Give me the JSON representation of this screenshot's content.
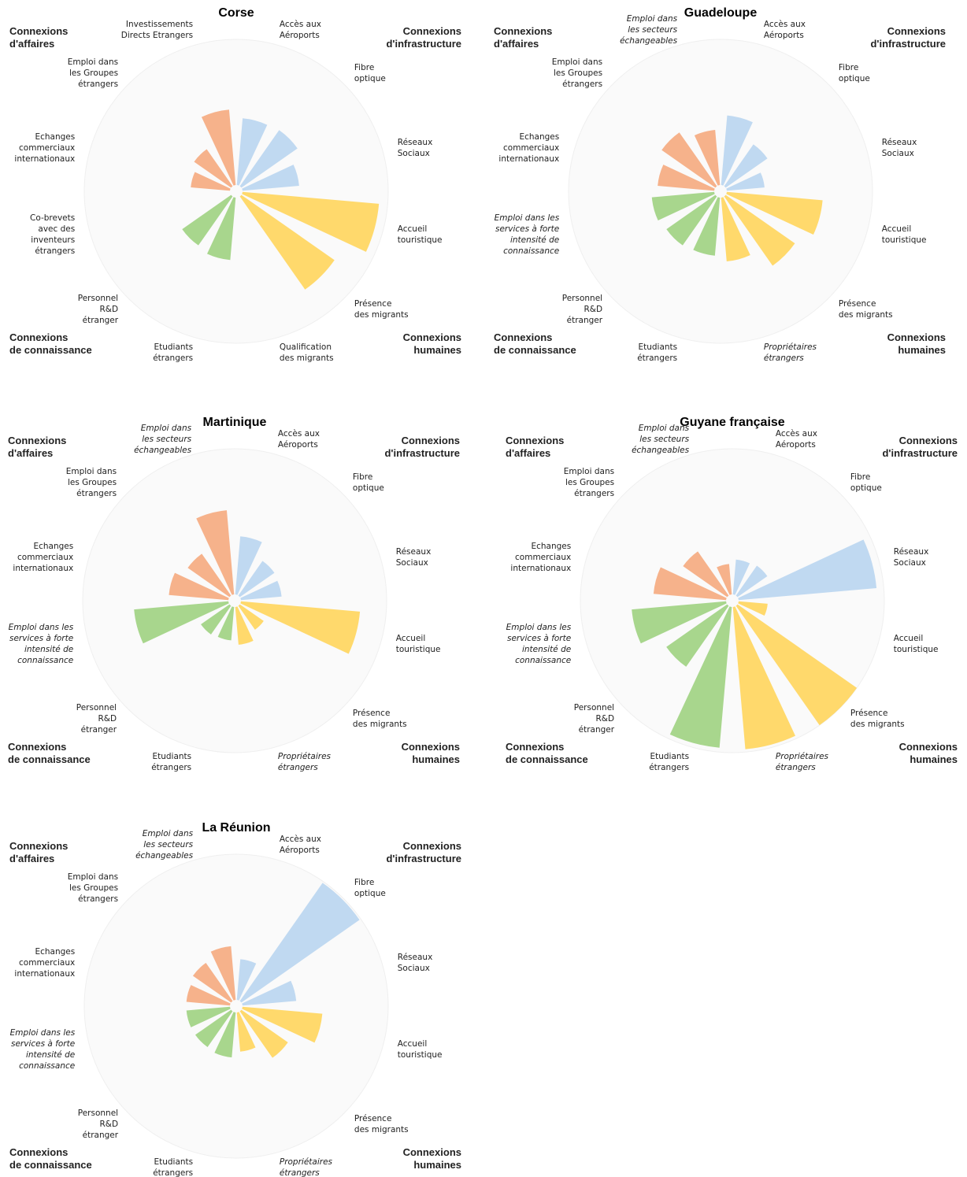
{
  "chart_data": [
    {
      "type": "polar_bar",
      "title": "Corse",
      "categories": [
        "Accès aux\nAéroports",
        "Fibre\noptique",
        "Réseaux\nSociaux",
        "Accueil\ntouristique",
        "Présence\ndes migrants",
        "Qualification\ndes migrants",
        "Etudiants\nétrangers",
        "Personnel\nR&D\nétranger",
        "Co-brevets\navec des\ninventeurs\nétrangers",
        "Echanges\ncommerciaux\ninternationaux",
        "Emploi dans\nles Groupes\nétrangers",
        "Investissements\nDirects Etrangers"
      ],
      "label_style": [
        "normal",
        "normal",
        "normal",
        "normal",
        "normal",
        "normal",
        "normal",
        "normal",
        "normal",
        "normal",
        "normal",
        "normal"
      ],
      "values": [
        46,
        47,
        39,
        94,
        78,
        null,
        43,
        41,
        null,
        27,
        31,
        52
      ],
      "colors": [
        "#b9d5ef",
        "#b9d5ef",
        "#b9d5ef",
        "#ffd55c",
        "#ffd55c",
        "#ffd55c",
        "#9fd181",
        "#9fd181",
        "#9fd181",
        "#f5aa7e",
        "#f5aa7e",
        "#f5aa7e"
      ],
      "rlim": [
        0,
        100
      ],
      "groups": [
        {
          "name": "Connexions\nd'affaires",
          "color": "#f5a97c",
          "corner": "top-left"
        },
        {
          "name": "Connexions\nd'infrastructure",
          "color": "#a8c9ec",
          "corner": "top-right"
        },
        {
          "name": "Connexions\nde connaissance",
          "color": "#9ccd7f",
          "corner": "bottom-left"
        },
        {
          "name": "Connexions\nhumaines",
          "color": "#f5c41c",
          "corner": "bottom-right"
        }
      ]
    },
    {
      "type": "polar_bar",
      "title": "Guadeloupe",
      "categories": [
        "Accès aux\nAéroports",
        "Fibre\noptique",
        "Réseaux\nSociaux",
        "Accueil\ntouristique",
        "Présence\ndes migrants",
        "Propriétaires\nétrangers",
        "Etudiants\nétrangers",
        "Personnel\nR&D\nétranger",
        "Emploi dans les\nservices à forte\nintensité de\nconnaissance",
        "Echanges\ncommerciaux\ninternationaux",
        "Emploi dans\nles Groupes\nétrangers",
        "Emploi dans\nles secteurs\néchangeables"
      ],
      "label_style": [
        "normal",
        "normal",
        "normal",
        "normal",
        "normal",
        "italic",
        "normal",
        "normal",
        "italic",
        "normal",
        "normal",
        "italic"
      ],
      "values": [
        48,
        35,
        26,
        66,
        58,
        44,
        40,
        41,
        43,
        39,
        45,
        38
      ],
      "colors": [
        "#b9d5ef",
        "#b9d5ef",
        "#b9d5ef",
        "#ffd55c",
        "#ffd55c",
        "#ffd55c",
        "#9fd181",
        "#9fd181",
        "#9fd181",
        "#f5aa7e",
        "#f5aa7e",
        "#f5aa7e"
      ],
      "rlim": [
        0,
        100
      ],
      "groups": [
        {
          "name": "Connexions\nd'affaires",
          "color": "#f5a97c",
          "corner": "top-left"
        },
        {
          "name": "Connexions\nd'infrastructure",
          "color": "#a8c9ec",
          "corner": "top-right"
        },
        {
          "name": "Connexions\nde connaissance",
          "color": "#9ccd7f",
          "corner": "bottom-left"
        },
        {
          "name": "Connexions\nhumaines",
          "color": "#f5c41c",
          "corner": "bottom-right"
        }
      ]
    },
    {
      "type": "polar_bar",
      "title": "Martinique",
      "categories": [
        "Accès aux\nAéroports",
        "Fibre\noptique",
        "Réseaux\nSociaux",
        "Accueil\ntouristique",
        "Présence\ndes migrants",
        "Propriétaires\nétrangers",
        "Etudiants\nétrangers",
        "Personnel\nR&D\nétranger",
        "Emploi dans les\nservices à forte\nintensité de\nconnaissance",
        "Echanges\ncommerciaux\ninternationaux",
        "Emploi dans\nles Groupes\nétrangers",
        "Emploi dans\nles secteurs\néchangeables"
      ],
      "label_style": [
        "normal",
        "normal",
        "normal",
        "normal",
        "normal",
        "italic",
        "normal",
        "normal",
        "italic",
        "normal",
        "normal",
        "italic"
      ],
      "values": [
        40,
        29,
        28,
        82,
        20,
        26,
        23,
        24,
        65,
        41,
        35,
        58
      ],
      "colors": [
        "#b9d5ef",
        "#b9d5ef",
        "#b9d5ef",
        "#ffd55c",
        "#ffd55c",
        "#ffd55c",
        "#9fd181",
        "#9fd181",
        "#9fd181",
        "#f5aa7e",
        "#f5aa7e",
        "#f5aa7e"
      ],
      "rlim": [
        0,
        100
      ],
      "groups": [
        {
          "name": "Connexions\nd'affaires",
          "color": "#f5a97c",
          "corner": "top-left"
        },
        {
          "name": "Connexions\nd'infrastructure",
          "color": "#a8c9ec",
          "corner": "top-right"
        },
        {
          "name": "Connexions\nde connaissance",
          "color": "#9ccd7f",
          "corner": "bottom-left"
        },
        {
          "name": "Connexions\nhumaines",
          "color": "#f5c41c",
          "corner": "bottom-right"
        }
      ]
    },
    {
      "type": "polar_bar",
      "title": "Guyane française",
      "categories": [
        "Accès aux\nAéroports",
        "Fibre\noptique",
        "Réseaux\nSociaux",
        "Accueil\ntouristique",
        "Présence\ndes migrants",
        "Propriétaires\nétrangers",
        "Etudiants\nétrangers",
        "Personnel\nR&D\nétranger",
        "Emploi dans les\nservices à forte\nintensité de\nconnaissance",
        "Echanges\ncommerciaux\ninternationaux",
        "Emploi dans\nles Groupes\nétrangers",
        "Emploi dans\nles secteurs\néchangeables"
      ],
      "label_style": [
        "normal",
        "normal",
        "normal",
        "normal",
        "normal",
        "italic",
        "normal",
        "normal",
        "italic",
        "normal",
        "normal",
        "italic"
      ],
      "values": [
        24,
        25,
        95,
        20,
        100,
        98,
        97,
        51,
        65,
        50,
        37,
        21
      ],
      "colors": [
        "#b9d5ef",
        "#b9d5ef",
        "#b9d5ef",
        "#ffd55c",
        "#ffd55c",
        "#ffd55c",
        "#9fd181",
        "#9fd181",
        "#9fd181",
        "#f5aa7e",
        "#f5aa7e",
        "#f5aa7e"
      ],
      "rlim": [
        0,
        100
      ],
      "groups": [
        {
          "name": "Connexions\nd'affaires",
          "color": "#f5a97c",
          "corner": "top-left"
        },
        {
          "name": "Connexions\nd'infrastructure",
          "color": "#a8c9ec",
          "corner": "top-right"
        },
        {
          "name": "Connexions\nde connaissance",
          "color": "#9ccd7f",
          "corner": "bottom-left"
        },
        {
          "name": "Connexions\nhumaines",
          "color": "#f5c41c",
          "corner": "bottom-right"
        }
      ]
    },
    {
      "type": "polar_bar",
      "title": "La Réunion",
      "categories": [
        "Accès aux\nAéroports",
        "Fibre\noptique",
        "Réseaux\nSociaux",
        "Accueil\ntouristique",
        "Présence\ndes migrants",
        "Propriétaires\nétrangers",
        "Etudiants\nétrangers",
        "Personnel\nR&D\nétranger",
        "Emploi dans les\nservices à forte\nintensité de\nconnaissance",
        "Echanges\ncommerciaux\ninternationaux",
        "Emploi dans\nles Groupes\nétrangers",
        "Emploi dans\nles secteurs\néchangeables"
      ],
      "label_style": [
        "normal",
        "normal",
        "normal",
        "normal",
        "normal",
        "italic",
        "normal",
        "normal",
        "italic",
        "normal",
        "normal",
        "italic"
      ],
      "values": [
        28,
        99,
        37,
        55,
        39,
        27,
        31,
        30,
        30,
        30,
        32,
        37
      ],
      "colors": [
        "#b9d5ef",
        "#b9d5ef",
        "#b9d5ef",
        "#ffd55c",
        "#ffd55c",
        "#ffd55c",
        "#9fd181",
        "#9fd181",
        "#9fd181",
        "#f5aa7e",
        "#f5aa7e",
        "#f5aa7e"
      ],
      "rlim": [
        0,
        100
      ],
      "groups": [
        {
          "name": "Connexions\nd'affaires",
          "color": "#f5a97c",
          "corner": "top-left"
        },
        {
          "name": "Connexions\nd'infrastructure",
          "color": "#a8c9ec",
          "corner": "top-right"
        },
        {
          "name": "Connexions\nde connaissance",
          "color": "#9ccd7f",
          "corner": "bottom-left"
        },
        {
          "name": "Connexions\nhumaines",
          "color": "#f5c41c",
          "corner": "bottom-right"
        }
      ]
    }
  ]
}
